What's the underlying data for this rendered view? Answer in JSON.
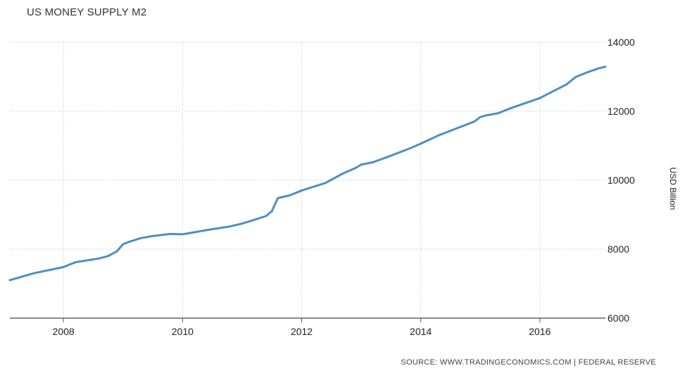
{
  "chart_data": {
    "type": "line",
    "title": "US MONEY SUPPLY M2",
    "ylabel": "USD Billion",
    "xlabel": "",
    "source": "SOURCE: WWW.TRADINGECONOMICS.COM | FEDERAL RESERVE",
    "ylim": [
      6000,
      14000
    ],
    "xlim": [
      2007.1,
      2017.1
    ],
    "y_ticks": [
      6000,
      8000,
      10000,
      12000,
      14000
    ],
    "x_ticks": [
      2008,
      2010,
      2012,
      2014,
      2016
    ],
    "grid": true,
    "line_color": "#4f8ec3",
    "x": [
      2007.1,
      2007.5,
      2008.0,
      2008.2,
      2008.6,
      2008.75,
      2008.9,
      2009.0,
      2009.1,
      2009.3,
      2009.5,
      2009.8,
      2010.0,
      2010.1,
      2010.3,
      2010.5,
      2010.8,
      2011.0,
      2011.2,
      2011.4,
      2011.5,
      2011.6,
      2011.7,
      2011.8,
      2012.0,
      2012.2,
      2012.4,
      2012.7,
      2012.9,
      2013.0,
      2013.2,
      2013.5,
      2013.8,
      2014.0,
      2014.3,
      2014.6,
      2014.9,
      2015.0,
      2015.1,
      2015.3,
      2015.5,
      2015.75,
      2016.0,
      2016.2,
      2016.45,
      2016.6,
      2016.8,
      2017.0,
      2017.1
    ],
    "series": [
      {
        "values": [
          7100,
          7300,
          7480,
          7620,
          7730,
          7800,
          7940,
          8140,
          8210,
          8320,
          8380,
          8440,
          8430,
          8460,
          8520,
          8580,
          8660,
          8740,
          8850,
          8960,
          9100,
          9480,
          9520,
          9560,
          9700,
          9810,
          9920,
          10200,
          10350,
          10450,
          10520,
          10710,
          10910,
          11060,
          11300,
          11500,
          11700,
          11830,
          11880,
          11940,
          12080,
          12230,
          12380,
          12560,
          12780,
          12990,
          13130,
          13250,
          13290
        ]
      }
    ]
  }
}
